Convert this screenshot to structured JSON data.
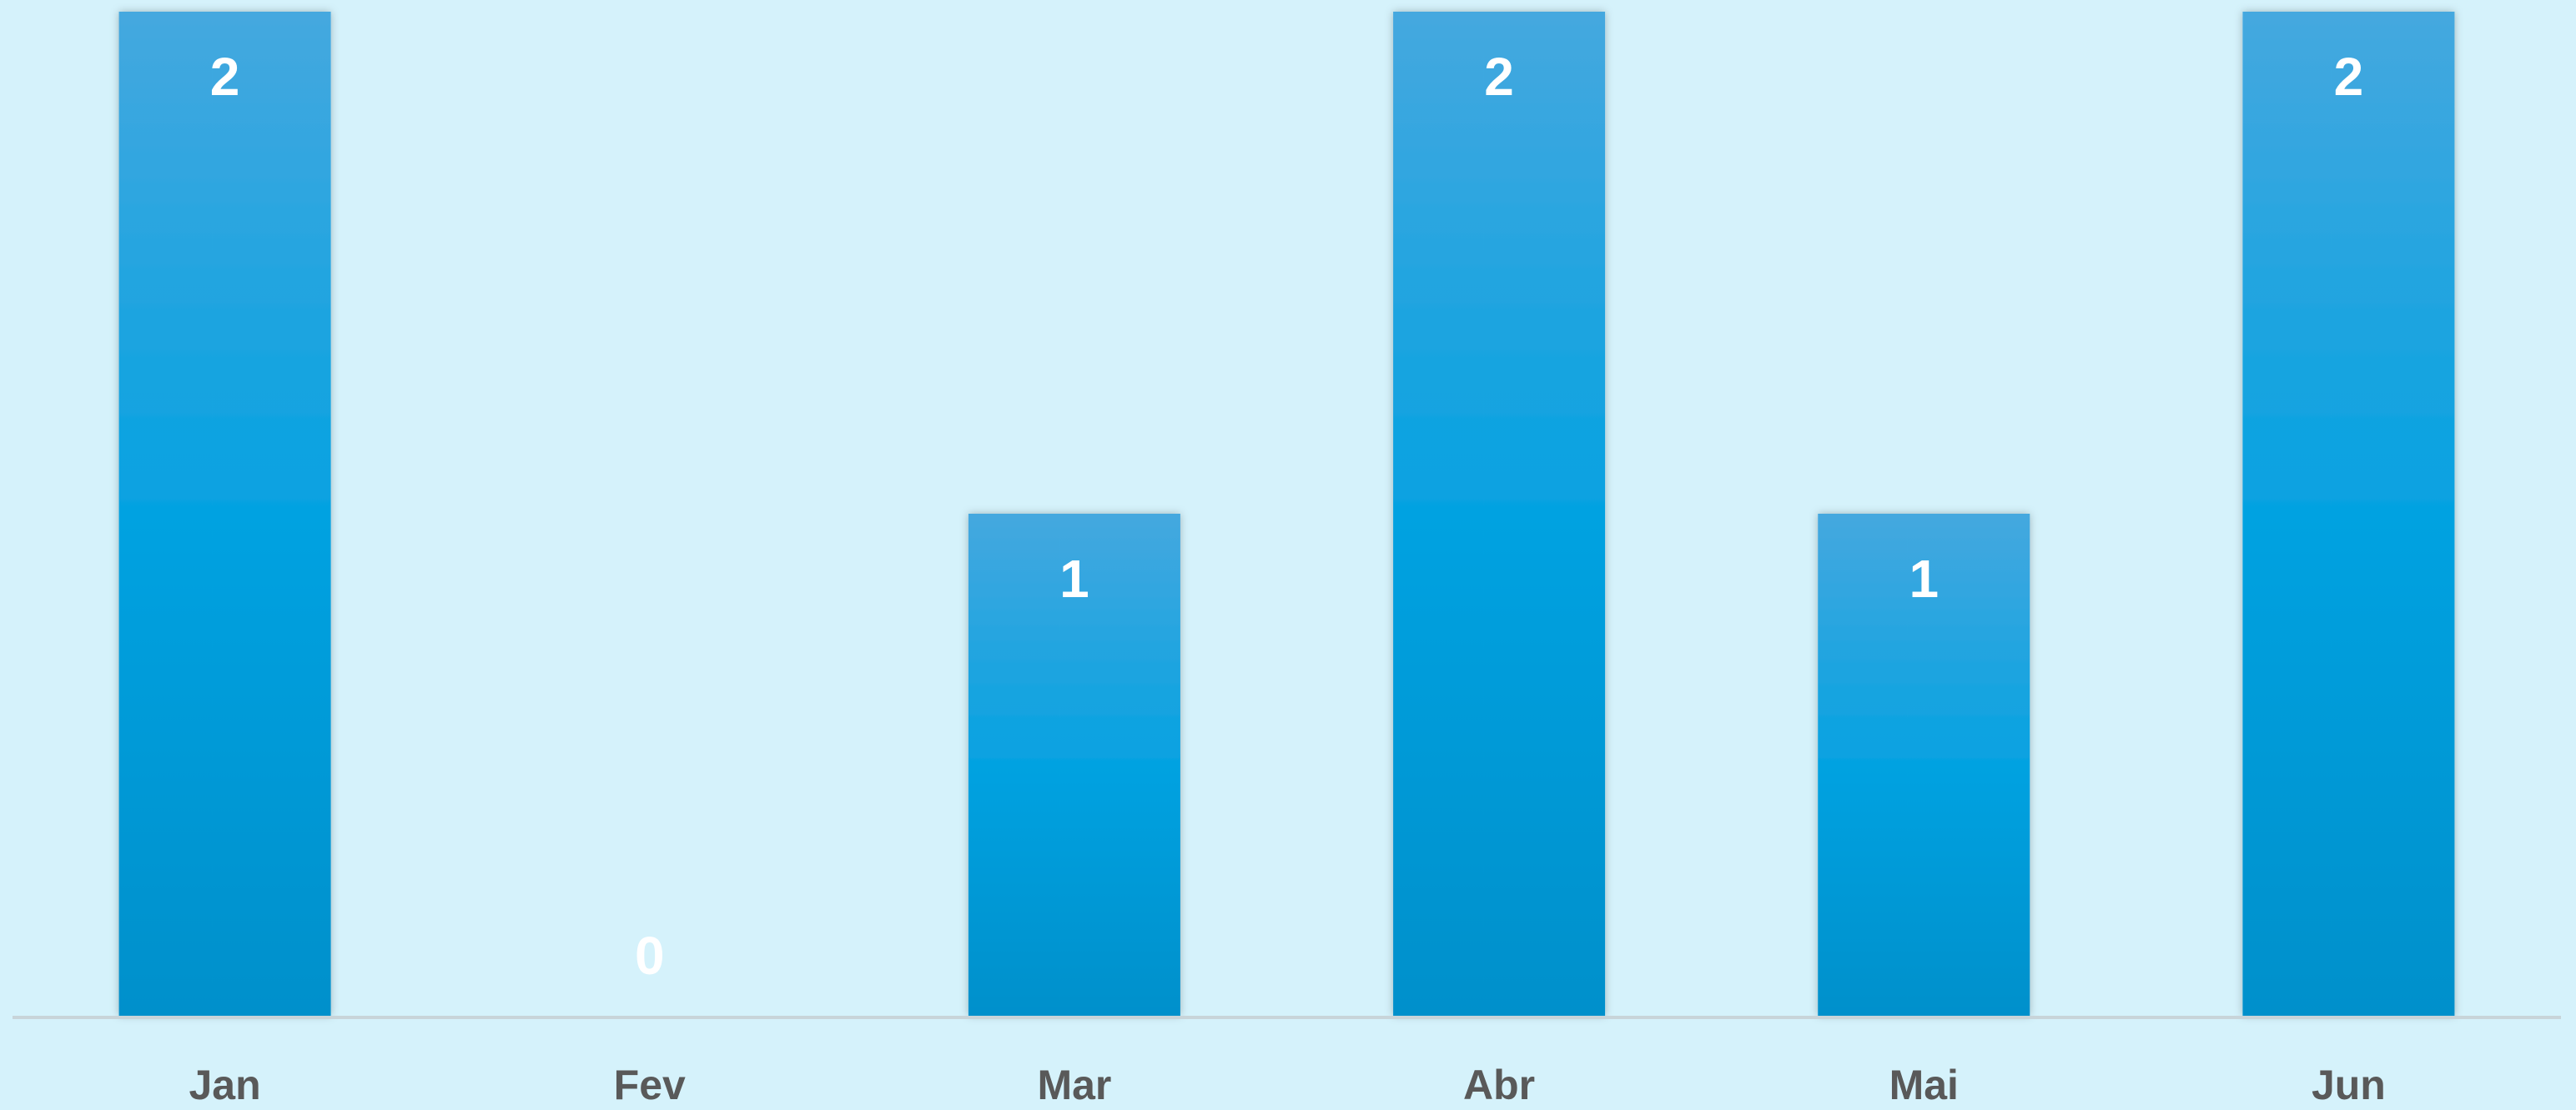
{
  "chart_data": {
    "type": "bar",
    "categories": [
      "Jan",
      "Fev",
      "Mar",
      "Abr",
      "Mai",
      "Jun"
    ],
    "values": [
      2,
      0,
      1,
      2,
      1,
      2
    ],
    "title": "",
    "xlabel": "",
    "ylabel": "",
    "ylim": [
      0,
      2
    ],
    "grid": false,
    "legend": "none",
    "data_labels": true
  },
  "colors": {
    "background": "#d5f2fb",
    "bar_top": "#45a8df",
    "bar_mid": "#05a2e1",
    "bar_bottom": "#0090cb",
    "axis": "#c8d4d9",
    "data_label": "#ffffff",
    "tick_label": "#595959"
  }
}
